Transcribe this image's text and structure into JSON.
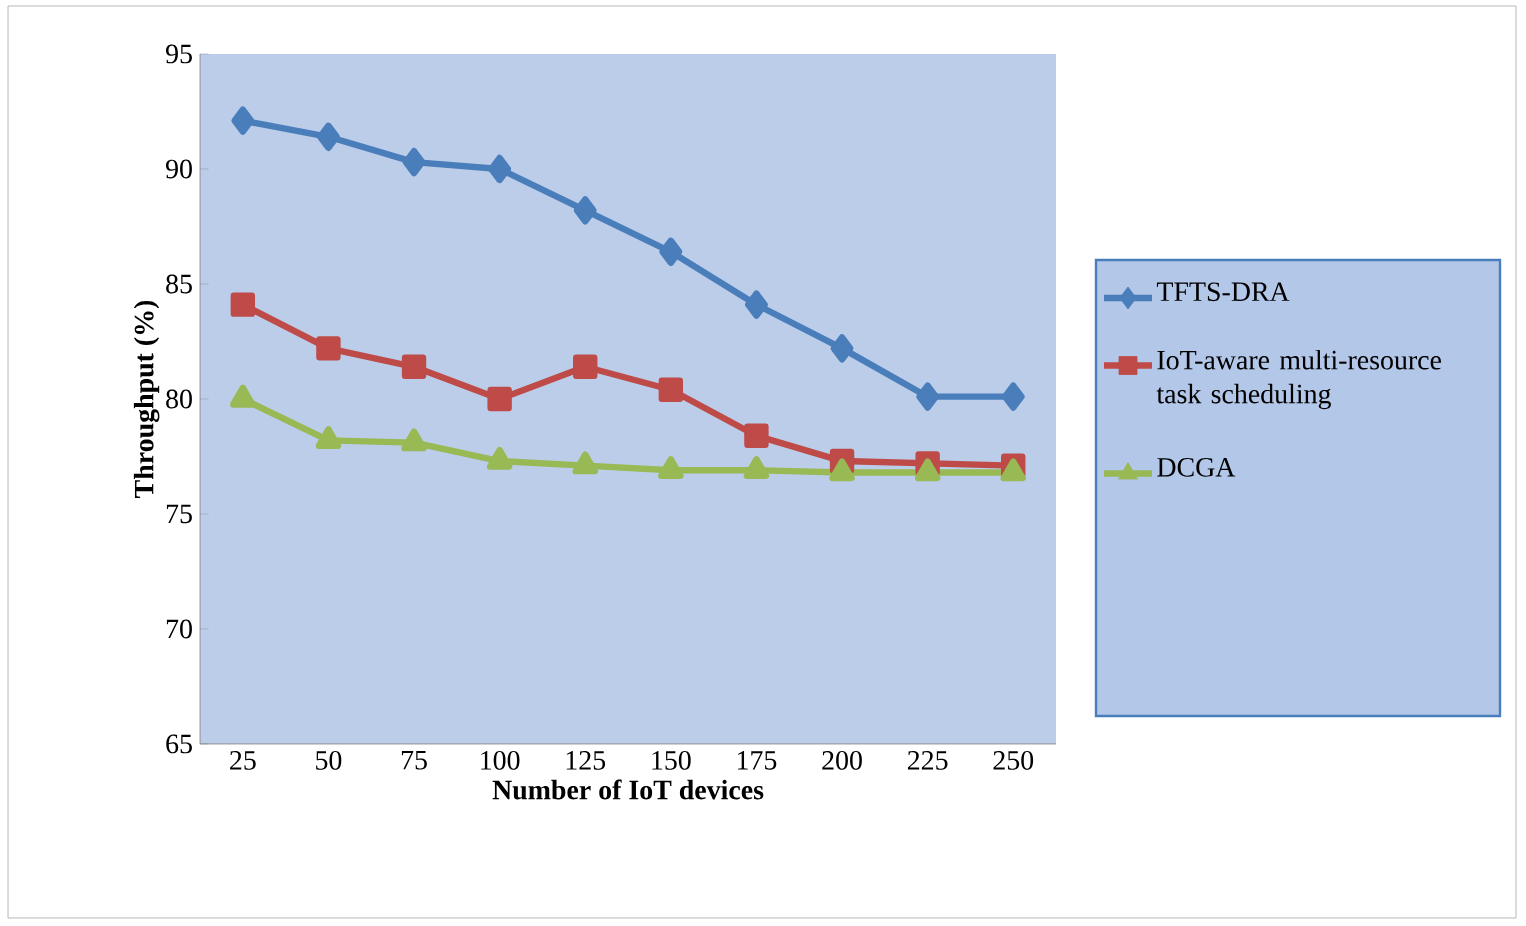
{
  "chart_data": {
    "type": "line",
    "xlabel": "Number of IoT devices",
    "ylabel": "Throughput (%)",
    "categories": [
      "25",
      "50",
      "75",
      "100",
      "125",
      "150",
      "175",
      "200",
      "225",
      "250"
    ],
    "ylim": [
      65,
      95
    ],
    "yticks": [
      65,
      70,
      75,
      80,
      85,
      90,
      95
    ],
    "legend": "right",
    "series": [
      {
        "name": "TFTS-DRA",
        "color": "#4a7ebb",
        "marker": "diamond",
        "values": [
          92.1,
          91.4,
          90.3,
          90.0,
          88.2,
          86.4,
          84.1,
          82.2,
          80.1,
          80.1
        ]
      },
      {
        "name": "IoT-aware multi-resource task scheduling",
        "color": "#be4b48",
        "marker": "square",
        "values": [
          84.1,
          82.2,
          81.4,
          80.0,
          81.4,
          80.4,
          78.4,
          77.3,
          77.2,
          77.1
        ]
      },
      {
        "name": "DCGA",
        "color": "#98b954",
        "marker": "triangle",
        "values": [
          80.0,
          78.2,
          78.1,
          77.3,
          77.1,
          76.9,
          76.9,
          76.8,
          76.8,
          76.8
        ]
      }
    ]
  }
}
